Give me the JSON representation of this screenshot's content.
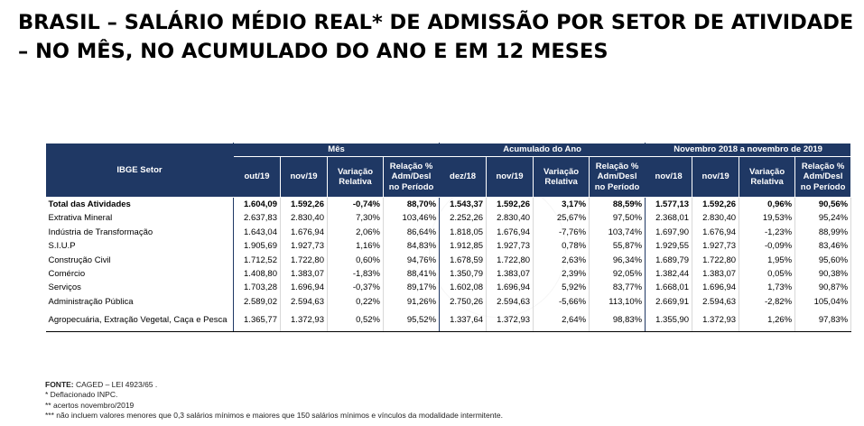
{
  "title": {
    "line1": "BRASIL – SALÁRIO MÉDIO REAL* DE ADMISSÃO POR SETOR DE ATIVIDADE",
    "line2": "– NO MÊS, NO ACUMULADO DO ANO E EM 12 MESES"
  },
  "table": {
    "setor_header": "IBGE Setor",
    "groups": {
      "mes": "Mês",
      "acumulado": "Acumulado do Ano",
      "doze_meses": "Novembro 2018 a novembro de 2019"
    },
    "subheaders": {
      "mes": [
        "out/19",
        "nov/19",
        "Variação Relativa",
        "Relação % Adm/Desl no Período"
      ],
      "acumulado": [
        "dez/18",
        "nov/19",
        "Variação Relativa",
        "Relação % Adm/Desl no Período"
      ],
      "doze_meses": [
        "nov/18",
        "nov/19",
        "Variação Relativa",
        "Relação % Adm/Desl no Período"
      ]
    },
    "rows": [
      {
        "setor": "Total das Atividades",
        "v": [
          "1.604,09",
          "1.592,26",
          "-0,74%",
          "88,70%",
          "1.543,37",
          "1.592,26",
          "3,17%",
          "88,59%",
          "1.577,13",
          "1.592,26",
          "0,96%",
          "90,56%"
        ]
      },
      {
        "setor": "Extrativa Mineral",
        "v": [
          "2.637,83",
          "2.830,40",
          "7,30%",
          "103,46%",
          "2.252,26",
          "2.830,40",
          "25,67%",
          "97,50%",
          "2.368,01",
          "2.830,40",
          "19,53%",
          "95,24%"
        ]
      },
      {
        "setor": "Indústria de Transformação",
        "v": [
          "1.643,04",
          "1.676,94",
          "2,06%",
          "86,64%",
          "1.818,05",
          "1.676,94",
          "-7,76%",
          "103,74%",
          "1.697,90",
          "1.676,94",
          "-1,23%",
          "88,99%"
        ]
      },
      {
        "setor": "S.I.U.P",
        "v": [
          "1.905,69",
          "1.927,73",
          "1,16%",
          "84,83%",
          "1.912,85",
          "1.927,73",
          "0,78%",
          "55,87%",
          "1.929,55",
          "1.927,73",
          "-0,09%",
          "83,46%"
        ]
      },
      {
        "setor": "Construção Civil",
        "v": [
          "1.712,52",
          "1.722,80",
          "0,60%",
          "94,76%",
          "1.678,59",
          "1.722,80",
          "2,63%",
          "96,34%",
          "1.689,79",
          "1.722,80",
          "1,95%",
          "95,60%"
        ]
      },
      {
        "setor": "Comércio",
        "v": [
          "1.408,80",
          "1.383,07",
          "-1,83%",
          "88,41%",
          "1.350,79",
          "1.383,07",
          "2,39%",
          "92,05%",
          "1.382,44",
          "1.383,07",
          "0,05%",
          "90,38%"
        ]
      },
      {
        "setor": "Serviços",
        "v": [
          "1.703,28",
          "1.696,94",
          "-0,37%",
          "89,17%",
          "1.602,08",
          "1.696,94",
          "5,92%",
          "83,77%",
          "1.668,01",
          "1.696,94",
          "1,73%",
          "90,87%"
        ]
      },
      {
        "setor": "Administração Pública",
        "v": [
          "2.589,02",
          "2.594,63",
          "0,22%",
          "91,26%",
          "2.750,26",
          "2.594,63",
          "-5,66%",
          "113,10%",
          "2.669,91",
          "2.594,63",
          "-2,82%",
          "105,04%"
        ]
      },
      {
        "setor": "Agropecuária, Extração Vegetal, Caça e Pesca",
        "v": [
          "1.365,77",
          "1.372,93",
          "0,52%",
          "95,52%",
          "1.337,64",
          "1.372,93",
          "2,64%",
          "98,83%",
          "1.355,90",
          "1.372,93",
          "1,26%",
          "97,83%"
        ]
      }
    ]
  },
  "notes": {
    "fonte_label": "FONTE:",
    "fonte_text": " CAGED – LEI 4923/65 .",
    "n1": "* Deflacionado INPC.",
    "n2": "** acertos novembro/2019",
    "n3": "*** não incluem valores menores que 0,3 salários mínimos e maiores que 150 salários mínimos e vínculos da modalidade intermitente."
  }
}
